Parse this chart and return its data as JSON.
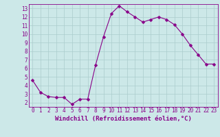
{
  "x": [
    0,
    1,
    2,
    3,
    4,
    5,
    6,
    7,
    8,
    9,
    10,
    11,
    12,
    13,
    14,
    15,
    16,
    17,
    18,
    19,
    20,
    21,
    22,
    23
  ],
  "y": [
    4.6,
    3.2,
    2.7,
    2.6,
    2.6,
    1.8,
    2.4,
    2.4,
    6.4,
    9.7,
    12.4,
    13.3,
    12.6,
    12.0,
    11.4,
    11.7,
    12.0,
    11.7,
    11.1,
    10.0,
    8.7,
    7.6,
    6.5,
    6.5
  ],
  "line_color": "#880088",
  "marker_color": "#880088",
  "bg_color": "#cce8e8",
  "grid_color": "#aacccc",
  "xlabel": "Windchill (Refroidissement éolien,°C)",
  "xlim": [
    -0.5,
    23.5
  ],
  "ylim": [
    1.5,
    13.5
  ],
  "xticks": [
    0,
    1,
    2,
    3,
    4,
    5,
    6,
    7,
    8,
    9,
    10,
    11,
    12,
    13,
    14,
    15,
    16,
    17,
    18,
    19,
    20,
    21,
    22,
    23
  ],
  "yticks": [
    2,
    3,
    4,
    5,
    6,
    7,
    8,
    9,
    10,
    11,
    12,
    13
  ],
  "tick_fontsize": 5.5,
  "xlabel_fontsize": 6.5,
  "line_width": 0.8,
  "marker_size": 2.5
}
